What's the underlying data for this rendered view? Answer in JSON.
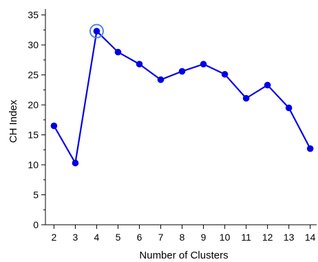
{
  "chart_data": {
    "type": "line",
    "title": "",
    "xlabel": "Number of Clusters",
    "ylabel": "CH Index",
    "x": [
      2,
      3,
      4,
      5,
      6,
      7,
      8,
      9,
      10,
      11,
      12,
      13,
      14
    ],
    "series": [
      {
        "values": [
          16.5,
          10.3,
          32.3,
          28.8,
          26.8,
          24.2,
          25.6,
          26.8,
          25.1,
          21.1,
          23.3,
          19.5,
          12.7
        ]
      }
    ],
    "xlim": [
      1.6,
      14.3
    ],
    "ylim": [
      0,
      36
    ],
    "y_ticks": [
      0,
      5,
      10,
      15,
      20,
      25,
      30,
      35
    ],
    "x_ticks": [
      2,
      3,
      4,
      5,
      6,
      7,
      8,
      9,
      10,
      11,
      12,
      13,
      14
    ],
    "highlight_x": 4,
    "grid": false,
    "colors": {
      "line": "#0000e6",
      "marker": "#0000e6",
      "highlight": "#4a86e8"
    }
  }
}
